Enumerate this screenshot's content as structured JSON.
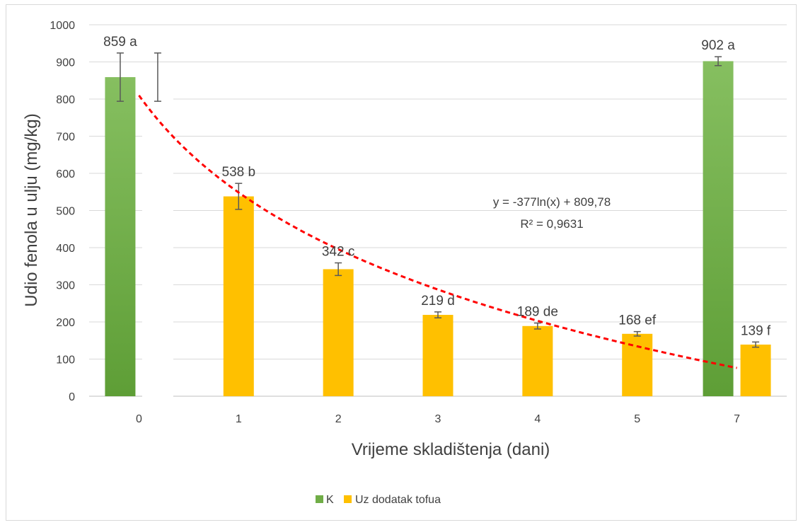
{
  "chart_data": {
    "type": "bar",
    "xlabel": "Vrijeme skladištenja (dani)",
    "ylabel": "Udio fenola u ulju (mg/kg)",
    "ylim": [
      0,
      1000
    ],
    "yticks": [
      "0",
      "100",
      "200",
      "300",
      "400",
      "500",
      "600",
      "700",
      "800",
      "900",
      "1000"
    ],
    "grid": true,
    "legend_position": "bottom",
    "categories": [
      "0",
      "1",
      "2",
      "3",
      "4",
      "5",
      "7"
    ],
    "series": [
      {
        "name": "K",
        "color": "#70ad47",
        "values": [
          859,
          null,
          null,
          null,
          null,
          null,
          902
        ],
        "errors": [
          65,
          null,
          null,
          null,
          null,
          null,
          12
        ],
        "labels": [
          "859 a",
          "",
          "",
          "",
          "",
          "",
          "902 a"
        ]
      },
      {
        "name": "Uz dodatak tofua",
        "color": "#ffc000",
        "values": [
          859,
          538,
          342,
          219,
          189,
          168,
          139
        ],
        "errors": [
          65,
          35,
          17,
          8,
          8,
          6,
          7
        ],
        "labels": [
          "",
          "538 b",
          "342 c",
          "219 d",
          "189 de",
          "168  ef",
          "139 f"
        ]
      }
    ],
    "trendline": {
      "type": "logarithmic",
      "color": "#ff0000",
      "equation": "y = -377ln(x) + 809,78",
      "r2": "R² = 0,9631"
    }
  }
}
